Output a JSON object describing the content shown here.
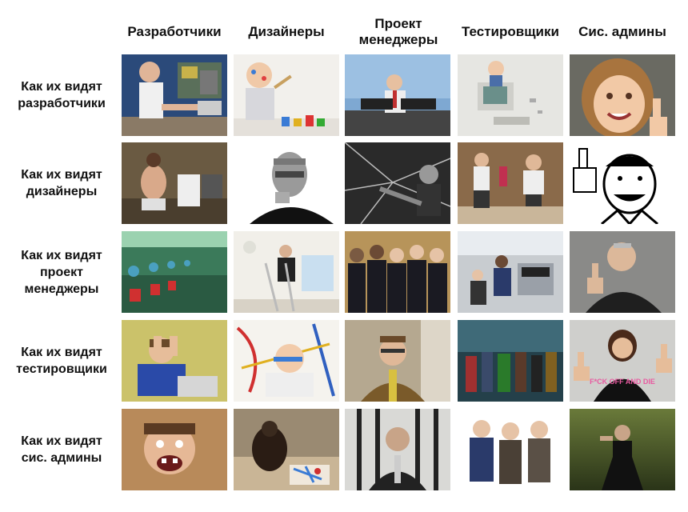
{
  "columns": [
    {
      "label": "Разработчики"
    },
    {
      "label": "Дизайнеры"
    },
    {
      "label": "Проект\nменеджеры"
    },
    {
      "label": "Тестировщики"
    },
    {
      "label": "Сис. админы"
    }
  ],
  "rows": [
    {
      "label": "Как их видят\nразработчики"
    },
    {
      "label": "Как их видят\nдизайнеры"
    },
    {
      "label": "Как их видят\nпроект\nменеджеры"
    },
    {
      "label": "Как их видят\nтестировщики"
    },
    {
      "label": "Как их видят\nсис. админы"
    }
  ],
  "photo_text": {
    "tshirt": "F*CK OFF AND DIE"
  }
}
